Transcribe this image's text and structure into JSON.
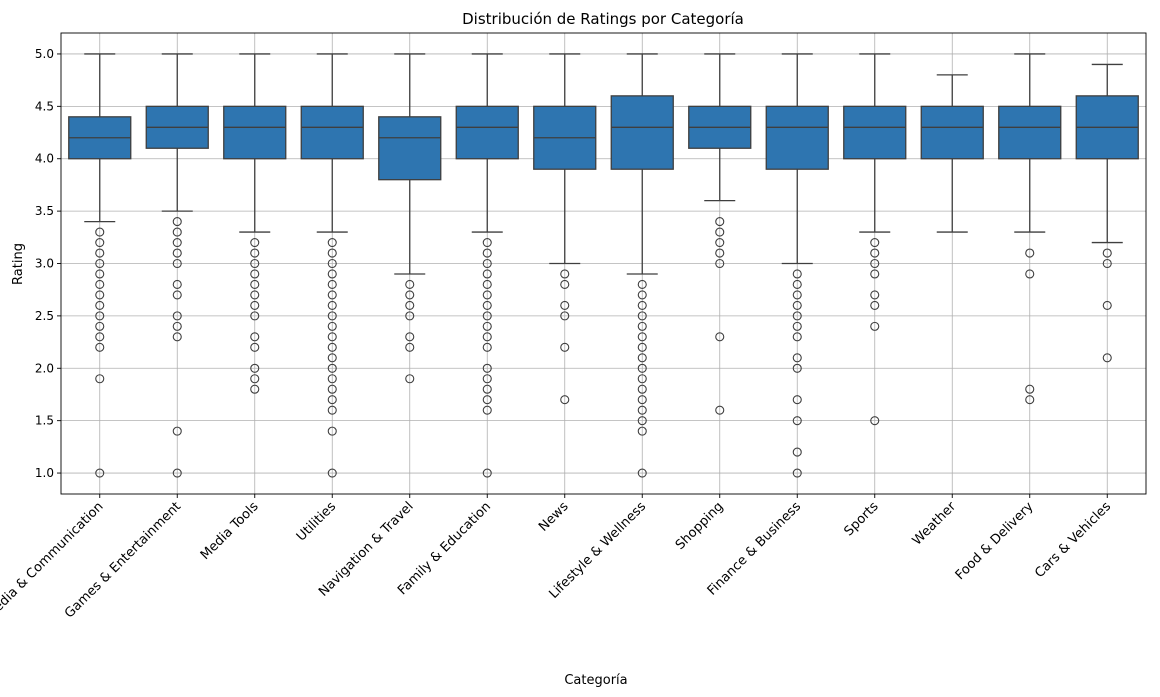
{
  "chart_data": {
    "type": "boxplot",
    "title": "Distribución de Ratings por Categoría",
    "xlabel": "Categoría",
    "ylabel": "Rating",
    "ylim": [
      0.8,
      5.2
    ],
    "yticks": [
      1.0,
      1.5,
      2.0,
      2.5,
      3.0,
      3.5,
      4.0,
      4.5,
      5.0
    ],
    "grid": true,
    "box_color": "#2e75b0",
    "categories": [
      "Social Media & Communication",
      "Games & Entertainment",
      "Media Tools",
      "Utilities",
      "Navigation & Travel",
      "Family & Education",
      "News",
      "Lifestyle & Wellness",
      "Shopping",
      "Finance & Business",
      "Sports",
      "Weather",
      "Food & Delivery",
      "Cars & Vehicles"
    ],
    "boxes": [
      {
        "whislo": 3.4,
        "q1": 4.0,
        "med": 4.2,
        "q3": 4.4,
        "whishi": 5.0,
        "fliers": [
          3.3,
          3.2,
          3.1,
          3.0,
          2.9,
          2.8,
          2.7,
          2.6,
          2.5,
          2.4,
          2.3,
          2.2,
          1.9,
          1.0
        ]
      },
      {
        "whislo": 3.5,
        "q1": 4.1,
        "med": 4.3,
        "q3": 4.5,
        "whishi": 5.0,
        "fliers": [
          3.4,
          3.3,
          3.2,
          3.1,
          3.0,
          2.8,
          2.7,
          2.5,
          2.4,
          2.3,
          1.4,
          1.0
        ]
      },
      {
        "whislo": 3.3,
        "q1": 4.0,
        "med": 4.3,
        "q3": 4.5,
        "whishi": 5.0,
        "fliers": [
          3.2,
          3.1,
          3.0,
          2.9,
          2.8,
          2.7,
          2.6,
          2.5,
          2.3,
          2.2,
          2.0,
          1.9,
          1.8
        ]
      },
      {
        "whislo": 3.3,
        "q1": 4.0,
        "med": 4.3,
        "q3": 4.5,
        "whishi": 5.0,
        "fliers": [
          3.2,
          3.1,
          3.0,
          2.9,
          2.8,
          2.7,
          2.6,
          2.5,
          2.4,
          2.3,
          2.2,
          2.1,
          2.0,
          1.9,
          1.8,
          1.7,
          1.6,
          1.4,
          1.0
        ]
      },
      {
        "whislo": 2.9,
        "q1": 3.8,
        "med": 4.2,
        "q3": 4.4,
        "whishi": 5.0,
        "fliers": [
          2.8,
          2.7,
          2.6,
          2.5,
          2.3,
          2.2,
          1.9
        ]
      },
      {
        "whislo": 3.3,
        "q1": 4.0,
        "med": 4.3,
        "q3": 4.5,
        "whishi": 5.0,
        "fliers": [
          3.2,
          3.1,
          3.0,
          2.9,
          2.8,
          2.7,
          2.6,
          2.5,
          2.4,
          2.3,
          2.2,
          2.0,
          1.9,
          1.8,
          1.7,
          1.6,
          1.0
        ]
      },
      {
        "whislo": 3.0,
        "q1": 3.9,
        "med": 4.2,
        "q3": 4.5,
        "whishi": 5.0,
        "fliers": [
          2.9,
          2.8,
          2.6,
          2.5,
          2.2,
          1.7
        ]
      },
      {
        "whislo": 2.9,
        "q1": 3.9,
        "med": 4.3,
        "q3": 4.6,
        "whishi": 5.0,
        "fliers": [
          2.8,
          2.7,
          2.6,
          2.5,
          2.4,
          2.3,
          2.2,
          2.1,
          2.0,
          1.9,
          1.8,
          1.7,
          1.6,
          1.5,
          1.4,
          1.0
        ]
      },
      {
        "whislo": 3.6,
        "q1": 4.1,
        "med": 4.3,
        "q3": 4.5,
        "whishi": 5.0,
        "fliers": [
          3.4,
          3.3,
          3.2,
          3.1,
          3.0,
          2.3,
          1.6
        ]
      },
      {
        "whislo": 3.0,
        "q1": 3.9,
        "med": 4.3,
        "q3": 4.5,
        "whishi": 5.0,
        "fliers": [
          2.9,
          2.8,
          2.7,
          2.6,
          2.5,
          2.4,
          2.3,
          2.1,
          2.0,
          1.7,
          1.5,
          1.2,
          1.0
        ]
      },
      {
        "whislo": 3.3,
        "q1": 4.0,
        "med": 4.3,
        "q3": 4.5,
        "whishi": 5.0,
        "fliers": [
          3.2,
          3.1,
          3.0,
          2.9,
          2.7,
          2.6,
          2.4,
          1.5
        ]
      },
      {
        "whislo": 3.3,
        "q1": 4.0,
        "med": 4.3,
        "q3": 4.5,
        "whishi": 4.8,
        "fliers": []
      },
      {
        "whislo": 3.3,
        "q1": 4.0,
        "med": 4.3,
        "q3": 4.5,
        "whishi": 5.0,
        "fliers": [
          3.1,
          2.9,
          1.8,
          1.7
        ]
      },
      {
        "whislo": 3.2,
        "q1": 4.0,
        "med": 4.3,
        "q3": 4.6,
        "whishi": 4.9,
        "fliers": [
          3.1,
          3.0,
          2.6,
          2.1
        ]
      }
    ]
  }
}
